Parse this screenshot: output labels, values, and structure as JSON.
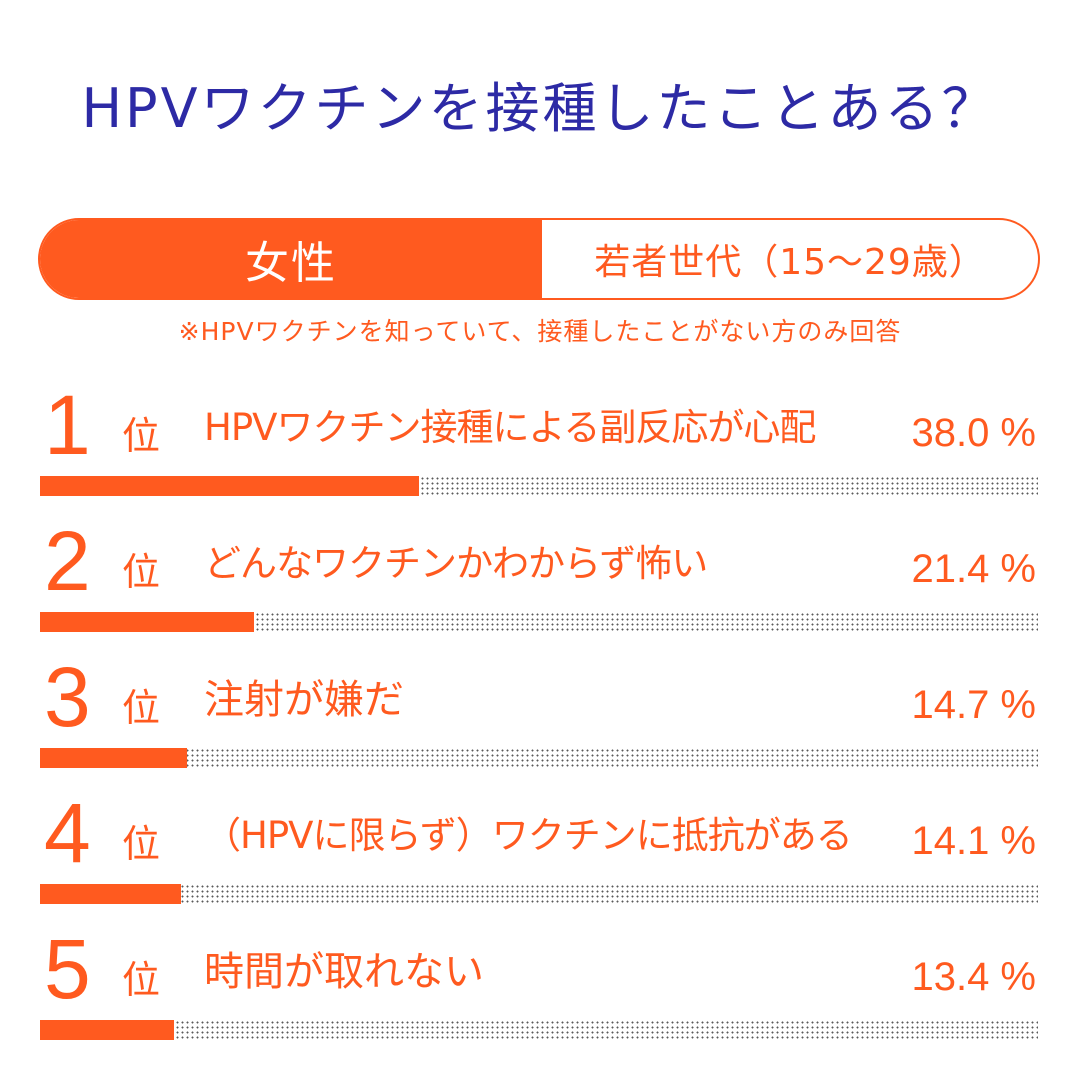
{
  "title": "HPVワクチンを接種したことある？",
  "segment": {
    "selected_label": "女性",
    "other_label": "若者世代（15〜29歳）"
  },
  "note": "※HPVワクチンを知っていて、接種したことがない方のみ回答",
  "colors": {
    "accent": "#ff5a1f",
    "title": "#2d2aa5"
  },
  "chart_data": {
    "type": "bar",
    "title": "HPVワクチンを接種したことある？",
    "categories": [
      "HPVワクチン接種による副反応が心配",
      "どんなワクチンかわからず怖い",
      "注射が嫌だ",
      "（HPVに限らず）ワクチンに抵抗がある",
      "時間が取れない"
    ],
    "values": [
      38.0,
      21.4,
      14.7,
      14.1,
      13.4
    ],
    "ylim": [
      0,
      100
    ],
    "ranks": [
      {
        "num": "1",
        "unit": "位",
        "label": "HPVワクチン接種による副反応が心配",
        "value": 38.0,
        "pct": "38.0 %"
      },
      {
        "num": "2",
        "unit": "位",
        "label": "どんなワクチンかわからず怖い",
        "value": 21.4,
        "pct": "21.4 %"
      },
      {
        "num": "3",
        "unit": "位",
        "label": "注射が嫌だ",
        "value": 14.7,
        "pct": "14.7 %"
      },
      {
        "num": "4",
        "unit": "位",
        "label": "（HPVに限らず）ワクチンに抵抗がある",
        "value": 14.1,
        "pct": "14.1 %"
      },
      {
        "num": "5",
        "unit": "位",
        "label": "時間が取れない",
        "value": 13.4,
        "pct": "13.4 %"
      }
    ]
  }
}
